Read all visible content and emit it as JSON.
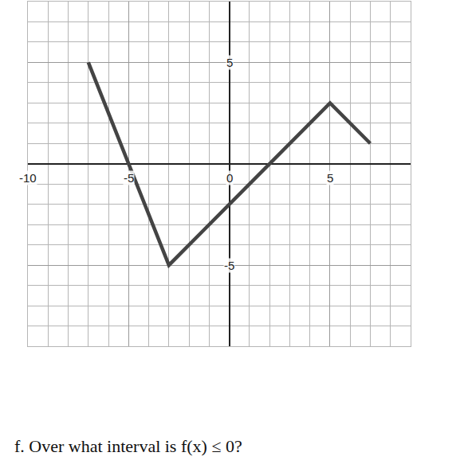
{
  "chart_data": {
    "type": "line",
    "x": [
      -7,
      -5,
      -3,
      5,
      7
    ],
    "values": [
      5,
      0,
      -5,
      3,
      1
    ],
    "color": "#444444",
    "xlim": [
      -10,
      9
    ],
    "xticks": [
      -10,
      -5,
      0,
      5
    ],
    "ylim": [
      -9,
      8
    ],
    "yticks": [
      -5,
      5
    ],
    "grid": true,
    "caption": "f. Over what interval is f(x) ≤ 0?"
  }
}
